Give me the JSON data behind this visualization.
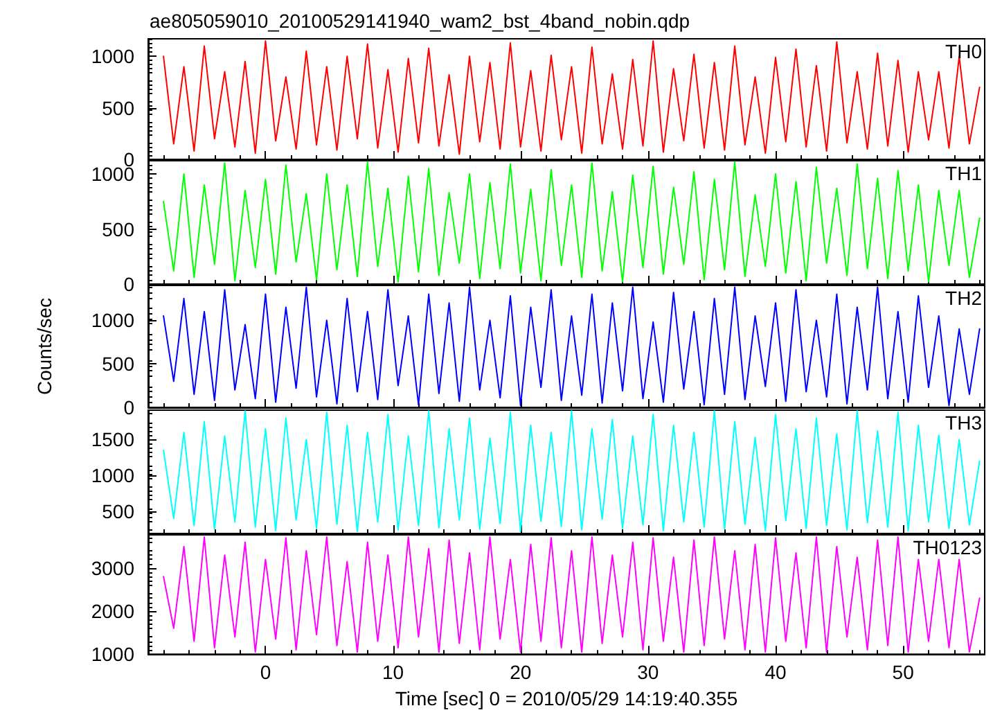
{
  "chart_data": [
    {
      "type": "line",
      "title": "ae805059010_20100529141940_wam2_bst_4band_nobin.qdp",
      "marker": "none",
      "line_style": "solid",
      "legend": "top right",
      "tick_labels": "y",
      "xlim": [
        -9.2,
        56.4
      ],
      "xticks": [
        0,
        10,
        20,
        30,
        40,
        50
      ],
      "ylim": [
        0,
        1170
      ],
      "yticks": [
        0,
        500,
        1000
      ],
      "x": [
        -8,
        -7.2,
        -6.4,
        -5.6,
        -4.8,
        -4,
        -3.2,
        -2.4,
        -1.6,
        -0.8,
        0,
        0.8,
        1.6,
        2.4,
        3.2,
        4,
        4.8,
        5.6,
        6.4,
        7.2,
        8,
        8.8,
        9.6,
        10.4,
        11.2,
        12,
        12.8,
        13.6,
        14.4,
        15.2,
        16,
        16.8,
        17.6,
        18.4,
        19.2,
        20,
        20.8,
        21.6,
        22.4,
        23.2,
        24,
        24.8,
        25.6,
        26.4,
        27.2,
        28,
        28.8,
        29.6,
        30.4,
        31.2,
        32,
        32.8,
        33.6,
        34.4,
        35.2,
        36,
        36.8,
        37.6,
        38.4,
        39.2,
        40,
        40.8,
        41.6,
        42.4,
        43.2,
        44,
        44.8,
        45.6,
        46.4,
        47.2,
        48,
        48.8,
        49.6,
        50.4,
        51.2,
        52,
        52.8,
        53.6,
        54.4,
        55.2,
        56
      ],
      "series": [
        {
          "name": "TH0",
          "color": "#ff0000",
          "values": [
            1000,
            150,
            900,
            80,
            1100,
            200,
            850,
            120,
            950,
            60,
            1150,
            180,
            800,
            100,
            1050,
            140,
            900,
            90,
            1000,
            200,
            1120,
            110,
            870,
            70,
            980,
            160,
            1080,
            130,
            820,
            50,
            1000,
            170,
            940,
            100,
            1130,
            120,
            860,
            80,
            1010,
            190,
            900,
            60,
            1090,
            150,
            830,
            100,
            970,
            130,
            1150,
            70,
            880,
            180,
            1020,
            110,
            940,
            90,
            1100,
            140,
            800,
            60,
            990,
            170,
            1070,
            120,
            910,
            80,
            1140,
            160,
            850,
            100,
            1030,
            130,
            960,
            70,
            850,
            190,
            850,
            110,
            1000,
            150,
            700
          ]
        }
      ]
    },
    {
      "type": "line",
      "marker": "none",
      "line_style": "solid",
      "legend": "top right",
      "tick_labels": "y",
      "xlim": [
        -9.2,
        56.4
      ],
      "xticks": [
        0,
        10,
        20,
        30,
        40,
        50
      ],
      "ylim": [
        0,
        1120
      ],
      "yticks": [
        0,
        500,
        1000
      ],
      "x": [
        -8,
        -7.2,
        -6.4,
        -5.6,
        -4.8,
        -4,
        -3.2,
        -2.4,
        -1.6,
        -0.8,
        0,
        0.8,
        1.6,
        2.4,
        3.2,
        4,
        4.8,
        5.6,
        6.4,
        7.2,
        8,
        8.8,
        9.6,
        10.4,
        11.2,
        12,
        12.8,
        13.6,
        14.4,
        15.2,
        16,
        16.8,
        17.6,
        18.4,
        19.2,
        20,
        20.8,
        21.6,
        22.4,
        23.2,
        24,
        24.8,
        25.6,
        26.4,
        27.2,
        28,
        28.8,
        29.6,
        30.4,
        31.2,
        32,
        32.8,
        33.6,
        34.4,
        35.2,
        36,
        36.8,
        37.6,
        38.4,
        39.2,
        40,
        40.8,
        41.6,
        42.4,
        43.2,
        44,
        44.8,
        45.6,
        46.4,
        47.2,
        48,
        48.8,
        49.6,
        50.4,
        51.2,
        52,
        52.8,
        53.6,
        54.4,
        55.2,
        56
      ],
      "series": [
        {
          "name": "TH1",
          "color": "#00ff00",
          "values": [
            750,
            120,
            1000,
            60,
            900,
            180,
            1100,
            30,
            850,
            150,
            950,
            90,
            1080,
            200,
            820,
            40,
            1000,
            130,
            900,
            70,
            1110,
            160,
            870,
            20,
            980,
            110,
            1050,
            80,
            830,
            190,
            1000,
            50,
            920,
            140,
            1090,
            100,
            860,
            30,
            1040,
            170,
            900,
            60,
            1100,
            120,
            840,
            20,
            990,
            150,
            1070,
            90,
            880,
            180,
            1020,
            40,
            950,
            130,
            1110,
            70,
            810,
            160,
            1000,
            100,
            930,
            30,
            1060,
            190,
            870,
            80,
            1090,
            140,
            960,
            50,
            1030,
            120,
            900,
            20,
            850,
            170,
            850,
            60,
            600
          ]
        }
      ]
    },
    {
      "type": "line",
      "ylabel": "Counts/sec",
      "marker": "none",
      "line_style": "solid",
      "legend": "top right",
      "tick_labels": "y",
      "xlim": [
        -9.2,
        56.4
      ],
      "xticks": [
        0,
        10,
        20,
        30,
        40,
        50
      ],
      "ylim": [
        0,
        1400
      ],
      "yticks": [
        0,
        500,
        1000
      ],
      "x": [
        -8,
        -7.2,
        -6.4,
        -5.6,
        -4.8,
        -4,
        -3.2,
        -2.4,
        -1.6,
        -0.8,
        0,
        0.8,
        1.6,
        2.4,
        3.2,
        4,
        4.8,
        5.6,
        6.4,
        7.2,
        8,
        8.8,
        9.6,
        10.4,
        11.2,
        12,
        12.8,
        13.6,
        14.4,
        15.2,
        16,
        16.8,
        17.6,
        18.4,
        19.2,
        20,
        20.8,
        21.6,
        22.4,
        23.2,
        24,
        24.8,
        25.6,
        26.4,
        27.2,
        28,
        28.8,
        29.6,
        30.4,
        31.2,
        32,
        32.8,
        33.6,
        34.4,
        35.2,
        36,
        36.8,
        37.6,
        38.4,
        39.2,
        40,
        40.8,
        41.6,
        42.4,
        43.2,
        44,
        44.8,
        45.6,
        46.4,
        47.2,
        48,
        48.8,
        49.6,
        50.4,
        51.2,
        52,
        52.8,
        53.6,
        54.4,
        55.2,
        56
      ],
      "series": [
        {
          "name": "TH2",
          "color": "#0000ff",
          "values": [
            1050,
            300,
            1250,
            150,
            1100,
            80,
            1350,
            200,
            950,
            100,
            1300,
            60,
            1150,
            220,
            1380,
            120,
            1000,
            40,
            1250,
            180,
            1100,
            90,
            1350,
            250,
            1050,
            30,
            1300,
            160,
            1200,
            70,
            1380,
            200,
            1000,
            110,
            1280,
            20,
            1150,
            230,
            1350,
            80,
            1050,
            140,
            1300,
            50,
            1200,
            190,
            1380,
            100,
            980,
            60,
            1320,
            210,
            1100,
            30,
            1250,
            150,
            1380,
            90,
            1050,
            240,
            1200,
            70,
            1350,
            180,
            1000,
            120,
            1300,
            40,
            1150,
            200,
            1380,
            100,
            1100,
            60,
            1280,
            230,
            1050,
            20,
            900,
            150,
            900
          ]
        }
      ]
    },
    {
      "type": "line",
      "marker": "none",
      "line_style": "solid",
      "legend": "top right",
      "tick_labels": "y",
      "xlim": [
        -9.2,
        56.4
      ],
      "xticks": [
        0,
        10,
        20,
        30,
        40,
        50
      ],
      "ylim": [
        190,
        1910
      ],
      "yticks": [
        500,
        1000,
        1500
      ],
      "x": [
        -8,
        -7.2,
        -6.4,
        -5.6,
        -4.8,
        -4,
        -3.2,
        -2.4,
        -1.6,
        -0.8,
        0,
        0.8,
        1.6,
        2.4,
        3.2,
        4,
        4.8,
        5.6,
        6.4,
        7.2,
        8,
        8.8,
        9.6,
        10.4,
        11.2,
        12,
        12.8,
        13.6,
        14.4,
        15.2,
        16,
        16.8,
        17.6,
        18.4,
        19.2,
        20,
        20.8,
        21.6,
        22.4,
        23.2,
        24,
        24.8,
        25.6,
        26.4,
        27.2,
        28,
        28.8,
        29.6,
        30.4,
        31.2,
        32,
        32.8,
        33.6,
        34.4,
        35.2,
        36,
        36.8,
        37.6,
        38.4,
        39.2,
        40,
        40.8,
        41.6,
        42.4,
        43.2,
        44,
        44.8,
        45.6,
        46.4,
        47.2,
        48,
        48.8,
        49.6,
        50.4,
        51.2,
        52,
        52.8,
        53.6,
        54.4,
        55.2,
        56
      ],
      "series": [
        {
          "name": "TH3",
          "color": "#00ffff",
          "values": [
            1350,
            400,
            1600,
            300,
            1750,
            250,
            1550,
            350,
            1900,
            280,
            1650,
            230,
            1800,
            380,
            1500,
            260,
            1880,
            320,
            1700,
            220,
            1600,
            350,
            1850,
            240,
            1550,
            300,
            1900,
            270,
            1650,
            380,
            1800,
            250,
            1520,
            330,
            1880,
            220,
            1700,
            360,
            1600,
            290,
            1900,
            240,
            1650,
            390,
            1780,
            260,
            1550,
            310,
            1850,
            230,
            1700,
            350,
            1600,
            280,
            1900,
            250,
            1750,
            320,
            1530,
            230,
            1850,
            370,
            1650,
            260,
            1800,
            300,
            1580,
            240,
            1900,
            340,
            1620,
            280,
            1880,
            230,
            1700,
            350,
            1560,
            260,
            1500,
            310,
            1200
          ]
        }
      ]
    },
    {
      "type": "line",
      "xlabel": "Time [sec] 0 = 2010/05/29 14:19:40.355",
      "marker": "none",
      "line_style": "solid",
      "legend": "top right",
      "xlim": [
        -9.2,
        56.4
      ],
      "xticks": [
        0,
        10,
        20,
        30,
        40,
        50
      ],
      "ylim": [
        1000,
        3770
      ],
      "yticks": [
        1000,
        2000,
        3000
      ],
      "x": [
        -8,
        -7.2,
        -6.4,
        -5.6,
        -4.8,
        -4,
        -3.2,
        -2.4,
        -1.6,
        -0.8,
        0,
        0.8,
        1.6,
        2.4,
        3.2,
        4,
        4.8,
        5.6,
        6.4,
        7.2,
        8,
        8.8,
        9.6,
        10.4,
        11.2,
        12,
        12.8,
        13.6,
        14.4,
        15.2,
        16,
        16.8,
        17.6,
        18.4,
        19.2,
        20,
        20.8,
        21.6,
        22.4,
        23.2,
        24,
        24.8,
        25.6,
        26.4,
        27.2,
        28,
        28.8,
        29.6,
        30.4,
        31.2,
        32,
        32.8,
        33.6,
        34.4,
        35.2,
        36,
        36.8,
        37.6,
        38.4,
        39.2,
        40,
        40.8,
        41.6,
        42.4,
        43.2,
        44,
        44.8,
        45.6,
        46.4,
        47.2,
        48,
        48.8,
        49.6,
        50.4,
        51.2,
        52,
        52.8,
        53.6,
        54.4,
        55.2,
        56
      ],
      "series": [
        {
          "name": "TH0123",
          "color": "#ff00ff",
          "values": [
            2800,
            1600,
            3500,
            1300,
            3720,
            1150,
            3300,
            1400,
            3600,
            1050,
            3200,
            1350,
            3700,
            1100,
            3400,
            1450,
            3720,
            1200,
            3150,
            1050,
            3600,
            1300,
            3300,
            1150,
            3720,
            1400,
            3450,
            1050,
            3650,
            1250,
            3350,
            1100,
            3720,
            1350,
            3200,
            1050,
            3550,
            1300,
            3700,
            1150,
            3400,
            1050,
            3720,
            1250,
            3300,
            1400,
            3600,
            1100,
            3700,
            1300,
            3250,
            1050,
            3650,
            1200,
            3720,
            1350,
            3400,
            1100,
            3550,
            1050,
            3700,
            1300,
            3350,
            1150,
            3720,
            1050,
            3500,
            1400,
            3250,
            1100,
            3650,
            1200,
            3720,
            1050,
            3200,
            1300,
            3200,
            1150,
            3200,
            1050,
            2300
          ]
        }
      ]
    }
  ]
}
